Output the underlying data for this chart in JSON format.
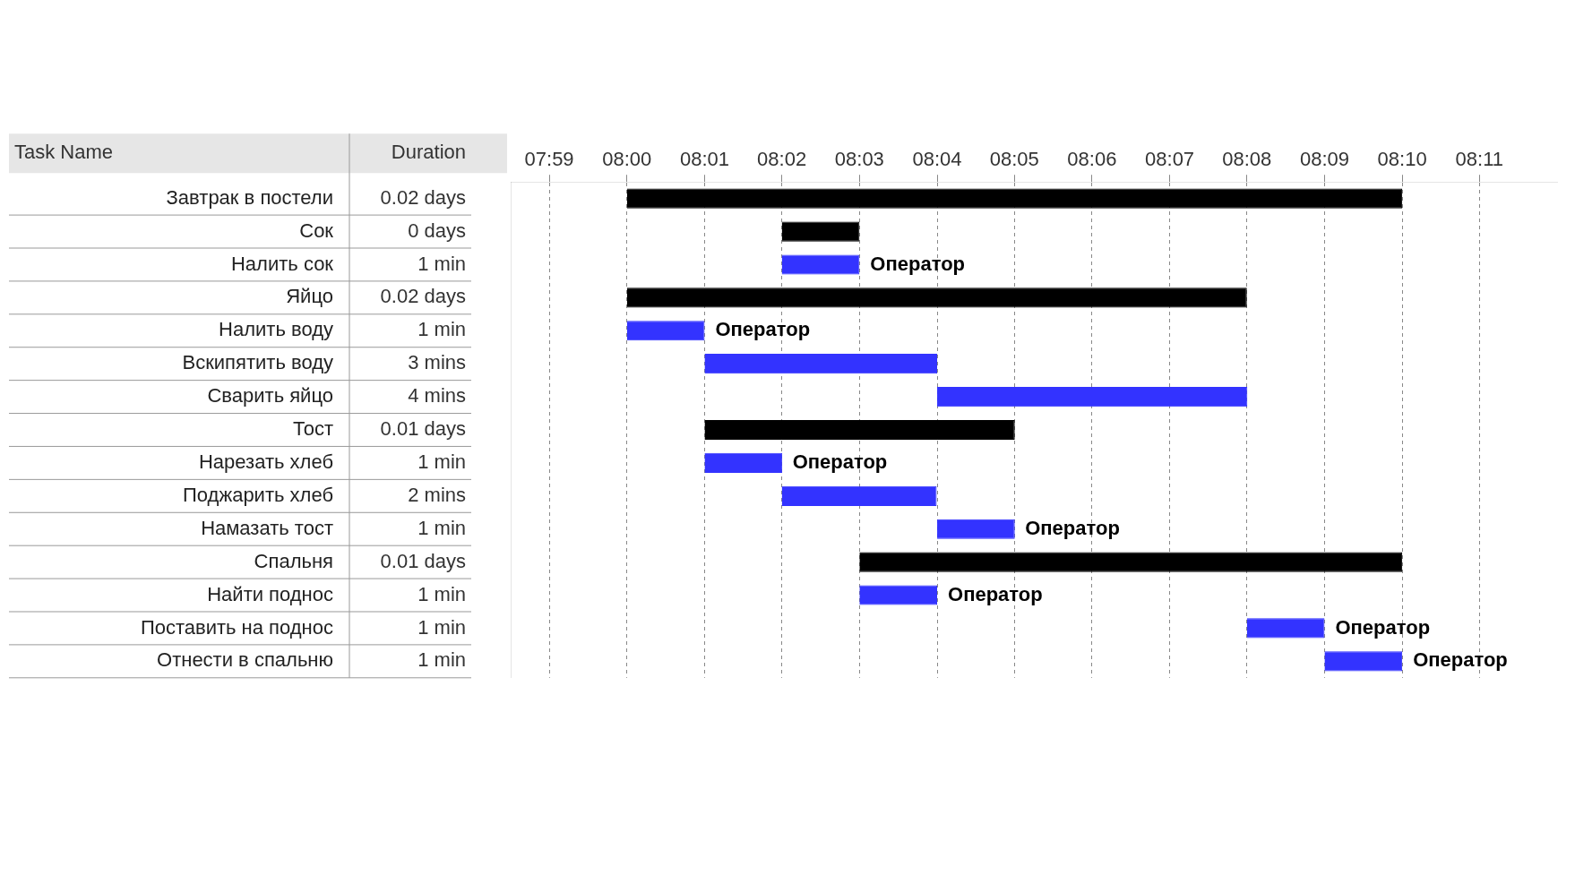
{
  "chart_data": {
    "type": "bar",
    "orientation": "horizontal",
    "categories": [
      "Завтрак в постели",
      "Сок",
      "Налить сок",
      "Яйцо",
      "Налить воду",
      "Вскипятить воду",
      "Сварить яйцо",
      "Тост",
      "Нарезать хлеб",
      "Поджарить хлеб",
      "Намазать тост",
      "Спальня",
      "Найти поднос",
      "Поставить на поднос",
      "Отнести в спальню"
    ],
    "base": [
      8,
      8.0333,
      8.0333,
      8,
      8,
      8.0167,
      8.0667,
      8.0167,
      8.0167,
      8.0333,
      8.0667,
      8.05,
      8.05,
      8.1333,
      8.15
    ],
    "values": [
      0.1667,
      0.0167,
      0.0167,
      0.1333,
      0.0167,
      0.05,
      0.0667,
      0.0667,
      0.0167,
      0.0333,
      0.0167,
      0.1167,
      0.0167,
      0.0167,
      0.0167
    ],
    "colors": [
      "#000000",
      "#000000",
      "#3333ff",
      "#000000",
      "#3333ff",
      "#3333ff",
      "#3333ff",
      "#000000",
      "#3333ff",
      "#3333ff",
      "#3333ff",
      "#000000",
      "#3333ff",
      "#3333ff",
      "#3333ff"
    ],
    "xlim": [
      7.975,
      8.2
    ],
    "xticks": [
      {
        "value": 7.9833,
        "label": "07:59"
      },
      {
        "value": 8,
        "label": "08:00"
      },
      {
        "value": 8.0167,
        "label": "08:01"
      },
      {
        "value": 8.0333,
        "label": "08:02"
      },
      {
        "value": 8.05,
        "label": "08:03"
      },
      {
        "value": 8.0667,
        "label": "08:04"
      },
      {
        "value": 8.0833,
        "label": "08:05"
      },
      {
        "value": 8.1,
        "label": "08:06"
      },
      {
        "value": 8.1167,
        "label": "08:07"
      },
      {
        "value": 8.1333,
        "label": "08:08"
      },
      {
        "value": 8.15,
        "label": "08:09"
      },
      {
        "value": 8.1667,
        "label": "08:10"
      },
      {
        "value": 8.1833,
        "label": "08:11"
      }
    ],
    "grid": "x",
    "line_style": "dashed",
    "legend": false,
    "annotations": [
      "Task Name",
      "Duration",
      "0.02 days",
      "0 days",
      "1 min",
      "0.02 days",
      "1 min",
      "3 mins",
      "4 mins",
      "0.01 days",
      "1 min",
      "2 mins",
      "1 min",
      "0.01 days",
      "1 min",
      "1 min",
      "1 min",
      {
        "text": "Оператор",
        "x": 8.05,
        "y": "Налить сок"
      },
      {
        "text": "Оператор",
        "x": 8.0167,
        "y": "Налить воду"
      },
      {
        "text": "Оператор",
        "x": 8.0333,
        "y": "Нарезать хлеб"
      },
      {
        "text": "Оператор",
        "x": 8.0833,
        "y": "Намазать тост"
      },
      {
        "text": "Оператор",
        "x": 8.0667,
        "y": "Найти поднос"
      },
      {
        "text": "Оператор",
        "x": 8.15,
        "y": "Поставить на поднос"
      },
      {
        "text": "Оператор",
        "x": 8.1667,
        "y": "Отнести в спальню"
      }
    ]
  }
}
